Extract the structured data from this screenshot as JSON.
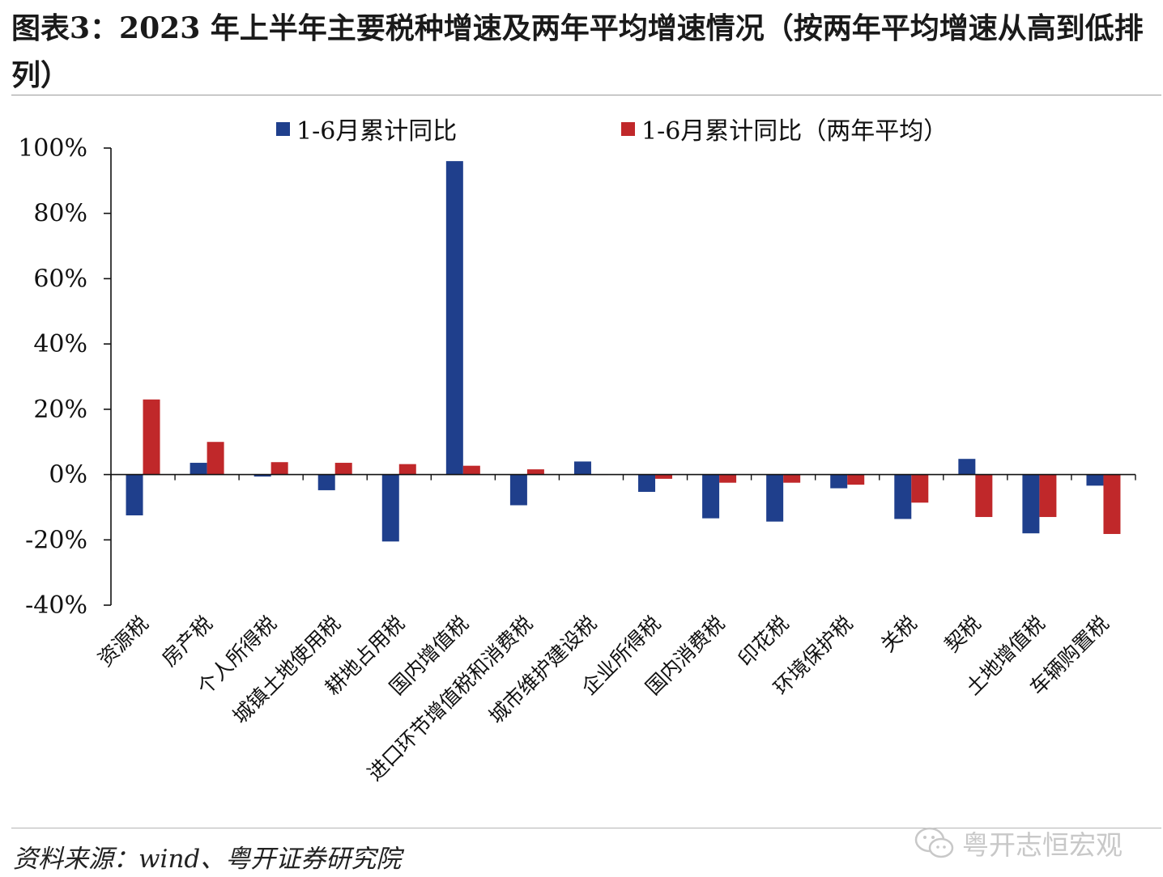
{
  "title": "图表3：2023 年上半年主要税种增速及两年平均增速情况（按两年平均增速从高到低排列）",
  "source": "资料来源：wind、粤开证券研究院",
  "watermark": "粤开志恒宏观",
  "colors": {
    "series1": "#1F3F8C",
    "series2": "#C0282A"
  },
  "chart_data": {
    "type": "bar",
    "categories": [
      "资源税",
      "房产税",
      "个人所得税",
      "城镇土地使用税",
      "耕地占用税",
      "国内增值税",
      "进口环节增值税和消费税",
      "城市维护建设税",
      "企业所得税",
      "国内消费税",
      "印花税",
      "环境保护税",
      "关税",
      "契税",
      "土地增值税",
      "车辆购置税"
    ],
    "series": [
      {
        "name": "1-6月累计同比",
        "values": [
          -12.5,
          3.6,
          -0.6,
          -4.8,
          -20.5,
          96.0,
          -9.4,
          4.0,
          -5.3,
          -13.4,
          -14.4,
          -4.2,
          -13.6,
          4.8,
          -18.0,
          -3.4
        ]
      },
      {
        "name": "1-6月累计同比（两年平均）",
        "values": [
          23.0,
          10.0,
          3.8,
          3.6,
          3.2,
          2.7,
          1.6,
          0.0,
          -1.3,
          -2.5,
          -2.5,
          -3.1,
          -8.6,
          -13.0,
          -13.0,
          -18.2
        ]
      }
    ],
    "ylim": [
      -40,
      100
    ],
    "yticks": [
      100,
      80,
      60,
      40,
      20,
      0,
      -20,
      -40
    ],
    "ytick_labels": [
      "100%",
      "80%",
      "60%",
      "40%",
      "20%",
      "0%",
      "-20%",
      "-40%"
    ],
    "legend_position": "top",
    "grid": false
  }
}
